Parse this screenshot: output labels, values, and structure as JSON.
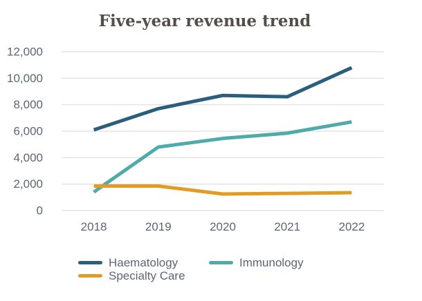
{
  "title": "Five-year revenue trend",
  "chart_data": {
    "type": "line",
    "title": "Five-year revenue trend",
    "categories": [
      "2018",
      "2019",
      "2020",
      "2021",
      "2022"
    ],
    "series": [
      {
        "name": "Haematology",
        "color": "#2b5e7c",
        "values": [
          6100,
          7700,
          8700,
          8600,
          10800
        ]
      },
      {
        "name": "Immunology",
        "color": "#4faba9",
        "values": [
          1400,
          4800,
          5450,
          5850,
          6700
        ]
      },
      {
        "name": "Specialty Care",
        "color": "#e29b25",
        "values": [
          1850,
          1850,
          1250,
          1300,
          1350
        ]
      }
    ],
    "xlabel": "",
    "ylabel": "",
    "ylim": [
      0,
      12000
    ],
    "ytick_step": 2000,
    "ytick_labels": [
      "0",
      "2,000",
      "4,000",
      "6,000",
      "8,000",
      "10,000",
      "12,000"
    ],
    "grid": "horizontal",
    "legend_position": "bottom",
    "colors": {
      "grid": "#e3e3e3",
      "tick_label": "#5c6670",
      "title": "#534e48",
      "background": "#ffffff"
    }
  }
}
